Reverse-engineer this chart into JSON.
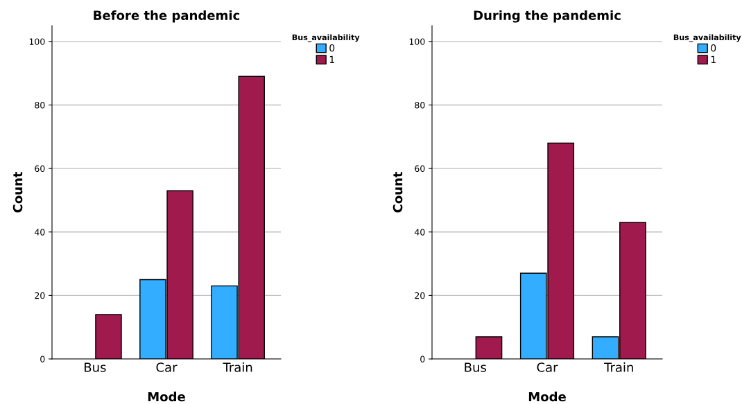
{
  "chart_data": [
    {
      "type": "bar",
      "title": "Before the pandemic",
      "xlabel": "Mode",
      "ylabel": "Count",
      "legend_title": "Bus_availability",
      "categories": [
        "Bus",
        "Car",
        "Train"
      ],
      "series": [
        {
          "name": "0",
          "color": "#33adff",
          "values": [
            0,
            25,
            23
          ]
        },
        {
          "name": "1",
          "color": "#a01a4e",
          "values": [
            14,
            53,
            89
          ]
        }
      ],
      "ylim": [
        0,
        105
      ],
      "yticks": [
        0,
        20,
        40,
        60,
        80,
        100
      ],
      "grid": "y",
      "legend": "top right"
    },
    {
      "type": "bar",
      "title": "During the pandemic",
      "xlabel": "Mode",
      "ylabel": "Count",
      "legend_title": "Bus_availability",
      "categories": [
        "Bus",
        "Car",
        "Train"
      ],
      "series": [
        {
          "name": "0",
          "color": "#33adff",
          "values": [
            0,
            27,
            7
          ]
        },
        {
          "name": "1",
          "color": "#a01a4e",
          "values": [
            7,
            68,
            43
          ]
        }
      ],
      "ylim": [
        0,
        105
      ],
      "yticks": [
        0,
        20,
        40,
        60,
        80,
        100
      ],
      "grid": "y",
      "legend": "top right"
    }
  ]
}
